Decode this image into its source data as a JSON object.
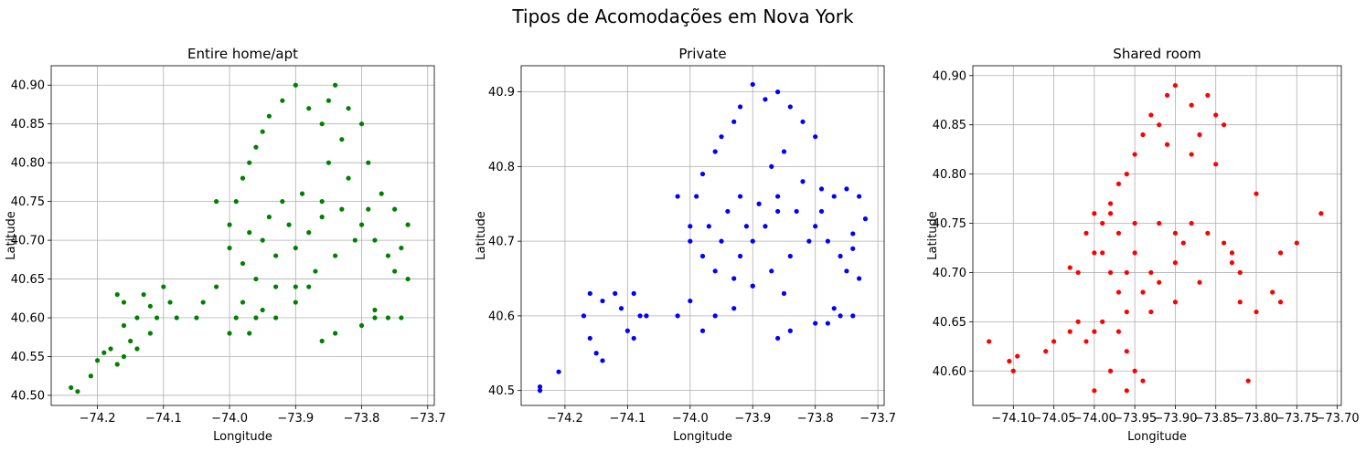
{
  "figure": {
    "title": "Tipos de Acomodações em Nova York"
  },
  "chart_data": [
    {
      "type": "scatter",
      "title": "Entire home/apt",
      "xlabel": "Longitude",
      "ylabel": "Latitude",
      "color": "#008000",
      "grid": true,
      "xlim": [
        -74.27,
        -73.69
      ],
      "ylim": [
        40.487,
        40.925
      ],
      "xticks": [
        -74.2,
        -74.1,
        -74.0,
        -73.9,
        -73.8,
        -73.7
      ],
      "xtick_labels": [
        "−74.2",
        "−74.1",
        "−74.0",
        "−73.9",
        "−73.8",
        "−73.7"
      ],
      "yticks": [
        40.5,
        40.55,
        40.6,
        40.65,
        40.7,
        40.75,
        40.8,
        40.85,
        40.9
      ],
      "ytick_labels": [
        "40.50",
        "40.55",
        "40.60",
        "40.65",
        "40.70",
        "40.75",
        "40.80",
        "40.85",
        "40.90"
      ],
      "points": [
        [
          -74.24,
          40.51
        ],
        [
          -74.23,
          40.505
        ],
        [
          -74.21,
          40.525
        ],
        [
          -74.2,
          40.545
        ],
        [
          -74.19,
          40.555
        ],
        [
          -74.18,
          40.56
        ],
        [
          -74.17,
          40.54
        ],
        [
          -74.16,
          40.55
        ],
        [
          -74.15,
          40.57
        ],
        [
          -74.16,
          40.59
        ],
        [
          -74.17,
          40.63
        ],
        [
          -74.16,
          40.62
        ],
        [
          -74.14,
          40.6
        ],
        [
          -74.13,
          40.63
        ],
        [
          -74.12,
          40.615
        ],
        [
          -74.11,
          40.6
        ],
        [
          -74.1,
          40.64
        ],
        [
          -74.09,
          40.62
        ],
        [
          -74.08,
          40.6
        ],
        [
          -74.12,
          40.58
        ],
        [
          -74.14,
          40.56
        ],
        [
          -74.05,
          40.6
        ],
        [
          -74.04,
          40.62
        ],
        [
          -74.02,
          40.64
        ],
        [
          -74.0,
          40.58
        ],
        [
          -73.99,
          40.6
        ],
        [
          -73.97,
          40.58
        ],
        [
          -73.96,
          40.6
        ],
        [
          -73.98,
          40.62
        ],
        [
          -73.95,
          40.61
        ],
        [
          -73.93,
          40.6
        ],
        [
          -73.9,
          40.62
        ],
        [
          -73.88,
          40.64
        ],
        [
          -73.86,
          40.57
        ],
        [
          -73.84,
          40.58
        ],
        [
          -73.8,
          40.59
        ],
        [
          -73.78,
          40.6
        ],
        [
          -73.76,
          40.6
        ],
        [
          -73.74,
          40.6
        ],
        [
          -73.78,
          40.61
        ],
        [
          -74.02,
          40.75
        ],
        [
          -74.0,
          40.72
        ],
        [
          -73.99,
          40.75
        ],
        [
          -73.98,
          40.78
        ],
        [
          -73.97,
          40.8
        ],
        [
          -73.96,
          40.82
        ],
        [
          -73.95,
          40.84
        ],
        [
          -73.94,
          40.86
        ],
        [
          -73.92,
          40.88
        ],
        [
          -73.9,
          40.9
        ],
        [
          -73.88,
          40.87
        ],
        [
          -73.86,
          40.85
        ],
        [
          -73.85,
          40.88
        ],
        [
          -73.84,
          40.9
        ],
        [
          -73.82,
          40.87
        ],
        [
          -73.8,
          40.85
        ],
        [
          -73.83,
          40.83
        ],
        [
          -73.85,
          40.8
        ],
        [
          -73.82,
          40.78
        ],
        [
          -73.79,
          40.8
        ],
        [
          -73.95,
          40.7
        ],
        [
          -73.93,
          40.68
        ],
        [
          -73.9,
          40.69
        ],
        [
          -73.88,
          40.71
        ],
        [
          -73.86,
          40.73
        ],
        [
          -73.92,
          40.75
        ],
        [
          -73.89,
          40.76
        ],
        [
          -73.86,
          40.75
        ],
        [
          -73.83,
          40.74
        ],
        [
          -73.8,
          40.72
        ],
        [
          -73.78,
          40.7
        ],
        [
          -73.76,
          40.68
        ],
        [
          -73.74,
          40.69
        ],
        [
          -73.73,
          40.72
        ],
        [
          -73.75,
          40.74
        ],
        [
          -73.77,
          40.76
        ],
        [
          -73.79,
          40.74
        ],
        [
          -73.81,
          40.7
        ],
        [
          -73.84,
          40.68
        ],
        [
          -73.87,
          40.66
        ],
        [
          -73.9,
          40.64
        ],
        [
          -73.93,
          40.64
        ],
        [
          -73.96,
          40.65
        ],
        [
          -73.98,
          40.67
        ],
        [
          -74.0,
          40.69
        ],
        [
          -73.97,
          40.71
        ],
        [
          -73.94,
          40.73
        ],
        [
          -73.91,
          40.72
        ],
        [
          -73.75,
          40.66
        ],
        [
          -73.73,
          40.65
        ]
      ]
    },
    {
      "type": "scatter",
      "title": "Private",
      "xlabel": "Longitude",
      "ylabel": "Latitude",
      "color": "#0000ff",
      "grid": true,
      "xlim": [
        -74.27,
        -73.69
      ],
      "ylim": [
        40.48,
        40.935
      ],
      "xticks": [
        -74.2,
        -74.1,
        -74.0,
        -73.9,
        -73.8,
        -73.7
      ],
      "xtick_labels": [
        "−74.2",
        "−74.1",
        "−74.0",
        "−73.9",
        "−73.8",
        "−73.7"
      ],
      "yticks": [
        40.5,
        40.6,
        40.7,
        40.8,
        40.9
      ],
      "ytick_labels": [
        "40.5",
        "40.6",
        "40.7",
        "40.8",
        "40.9"
      ],
      "points": [
        [
          -74.24,
          40.505
        ],
        [
          -74.24,
          40.5
        ],
        [
          -74.21,
          40.525
        ],
        [
          -74.17,
          40.6
        ],
        [
          -74.16,
          40.57
        ],
        [
          -74.15,
          40.55
        ],
        [
          -74.14,
          40.54
        ],
        [
          -74.16,
          40.63
        ],
        [
          -74.14,
          40.62
        ],
        [
          -74.12,
          40.63
        ],
        [
          -74.11,
          40.61
        ],
        [
          -74.09,
          40.63
        ],
        [
          -74.08,
          40.6
        ],
        [
          -74.07,
          40.6
        ],
        [
          -74.09,
          40.57
        ],
        [
          -74.1,
          40.58
        ],
        [
          -74.02,
          40.6
        ],
        [
          -74.0,
          40.62
        ],
        [
          -73.98,
          40.58
        ],
        [
          -73.96,
          40.6
        ],
        [
          -73.93,
          40.61
        ],
        [
          -73.9,
          40.64
        ],
        [
          -73.86,
          40.57
        ],
        [
          -73.84,
          40.58
        ],
        [
          -73.8,
          40.59
        ],
        [
          -73.78,
          40.59
        ],
        [
          -73.76,
          40.6
        ],
        [
          -73.74,
          40.6
        ],
        [
          -73.77,
          40.61
        ],
        [
          -74.02,
          40.76
        ],
        [
          -74.0,
          40.72
        ],
        [
          -73.99,
          40.76
        ],
        [
          -73.98,
          40.79
        ],
        [
          -73.96,
          40.82
        ],
        [
          -73.95,
          40.84
        ],
        [
          -73.93,
          40.86
        ],
        [
          -73.92,
          40.88
        ],
        [
          -73.9,
          40.91
        ],
        [
          -73.88,
          40.89
        ],
        [
          -73.86,
          40.9
        ],
        [
          -73.84,
          40.88
        ],
        [
          -73.82,
          40.86
        ],
        [
          -73.8,
          40.84
        ],
        [
          -73.85,
          40.82
        ],
        [
          -73.87,
          40.8
        ],
        [
          -73.82,
          40.78
        ],
        [
          -73.79,
          40.77
        ],
        [
          -73.77,
          40.76
        ],
        [
          -73.75,
          40.77
        ],
        [
          -73.73,
          40.76
        ],
        [
          -73.95,
          40.7
        ],
        [
          -73.92,
          40.68
        ],
        [
          -73.9,
          40.7
        ],
        [
          -73.88,
          40.72
        ],
        [
          -73.86,
          40.74
        ],
        [
          -73.92,
          40.76
        ],
        [
          -73.89,
          40.75
        ],
        [
          -73.86,
          40.76
        ],
        [
          -73.83,
          40.74
        ],
        [
          -73.8,
          40.72
        ],
        [
          -73.78,
          40.7
        ],
        [
          -73.76,
          40.68
        ],
        [
          -73.74,
          40.69
        ],
        [
          -73.72,
          40.73
        ],
        [
          -73.74,
          40.71
        ],
        [
          -73.79,
          40.74
        ],
        [
          -73.81,
          40.7
        ],
        [
          -73.84,
          40.68
        ],
        [
          -73.87,
          40.66
        ],
        [
          -73.9,
          40.64
        ],
        [
          -73.93,
          40.65
        ],
        [
          -73.96,
          40.66
        ],
        [
          -73.98,
          40.68
        ],
        [
          -74.0,
          40.7
        ],
        [
          -73.97,
          40.72
        ],
        [
          -73.94,
          40.74
        ],
        [
          -73.91,
          40.72
        ],
        [
          -73.75,
          40.66
        ],
        [
          -73.73,
          40.65
        ],
        [
          -73.85,
          40.63
        ]
      ]
    },
    {
      "type": "scatter",
      "title": "Shared room",
      "xlabel": "Longitude",
      "ylabel": "Latitude",
      "color": "#ff0000",
      "grid": true,
      "xlim": [
        -74.15,
        -73.695
      ],
      "ylim": [
        40.565,
        40.91
      ],
      "xticks": [
        -74.1,
        -74.05,
        -74.0,
        -73.95,
        -73.9,
        -73.85,
        -73.8,
        -73.75,
        -73.7
      ],
      "xtick_labels": [
        "−74.10",
        "−74.05",
        "−74.00",
        "−73.95",
        "−73.90",
        "−73.85",
        "−73.80",
        "−73.75",
        "−73.70"
      ],
      "yticks": [
        40.6,
        40.65,
        40.7,
        40.75,
        40.8,
        40.85,
        40.9
      ],
      "ytick_labels": [
        "40.60",
        "40.65",
        "40.70",
        "40.75",
        "40.80",
        "40.85",
        "40.90"
      ],
      "points": [
        [
          -74.13,
          40.63
        ],
        [
          -74.1,
          40.6
        ],
        [
          -74.105,
          40.61
        ],
        [
          -74.095,
          40.615
        ],
        [
          -74.06,
          40.62
        ],
        [
          -74.05,
          40.63
        ],
        [
          -74.03,
          40.64
        ],
        [
          -74.02,
          40.65
        ],
        [
          -74.01,
          40.63
        ],
        [
          -74.0,
          40.64
        ],
        [
          -73.99,
          40.65
        ],
        [
          -73.97,
          40.64
        ],
        [
          -73.96,
          40.62
        ],
        [
          -73.95,
          40.6
        ],
        [
          -73.96,
          40.58
        ],
        [
          -73.98,
          40.6
        ],
        [
          -74.0,
          40.58
        ],
        [
          -73.94,
          40.59
        ],
        [
          -73.96,
          40.66
        ],
        [
          -73.97,
          40.68
        ],
        [
          -73.98,
          40.7
        ],
        [
          -74.0,
          40.72
        ],
        [
          -74.01,
          40.74
        ],
        [
          -74.0,
          40.76
        ],
        [
          -73.99,
          40.75
        ],
        [
          -73.98,
          40.77
        ],
        [
          -73.97,
          40.79
        ],
        [
          -73.96,
          40.8
        ],
        [
          -73.95,
          40.82
        ],
        [
          -73.94,
          40.84
        ],
        [
          -73.93,
          40.86
        ],
        [
          -73.92,
          40.85
        ],
        [
          -73.91,
          40.88
        ],
        [
          -73.9,
          40.89
        ],
        [
          -73.88,
          40.87
        ],
        [
          -73.87,
          40.84
        ],
        [
          -73.85,
          40.86
        ],
        [
          -73.86,
          40.88
        ],
        [
          -73.84,
          40.85
        ],
        [
          -73.85,
          40.81
        ],
        [
          -73.88,
          40.82
        ],
        [
          -73.91,
          40.83
        ],
        [
          -73.95,
          40.72
        ],
        [
          -73.93,
          40.7
        ],
        [
          -73.92,
          40.69
        ],
        [
          -73.9,
          40.71
        ],
        [
          -73.89,
          40.73
        ],
        [
          -73.88,
          40.75
        ],
        [
          -73.86,
          40.74
        ],
        [
          -73.84,
          40.73
        ],
        [
          -73.83,
          40.72
        ],
        [
          -73.82,
          40.7
        ],
        [
          -73.82,
          40.67
        ],
        [
          -73.8,
          40.66
        ],
        [
          -73.78,
          40.68
        ],
        [
          -73.77,
          40.72
        ],
        [
          -73.75,
          40.73
        ],
        [
          -73.72,
          40.76
        ],
        [
          -73.77,
          40.67
        ],
        [
          -73.8,
          40.78
        ],
        [
          -73.81,
          40.59
        ],
        [
          -73.83,
          40.71
        ],
        [
          -73.87,
          40.69
        ],
        [
          -73.9,
          40.67
        ],
        [
          -73.93,
          40.66
        ],
        [
          -73.94,
          40.68
        ],
        [
          -73.96,
          40.7
        ],
        [
          -73.97,
          40.74
        ],
        [
          -73.98,
          40.76
        ],
        [
          -73.99,
          40.72
        ],
        [
          -74.02,
          40.7
        ],
        [
          -74.03,
          40.705
        ],
        [
          -73.95,
          40.75
        ],
        [
          -73.92,
          40.75
        ],
        [
          -73.9,
          40.74
        ]
      ]
    }
  ]
}
